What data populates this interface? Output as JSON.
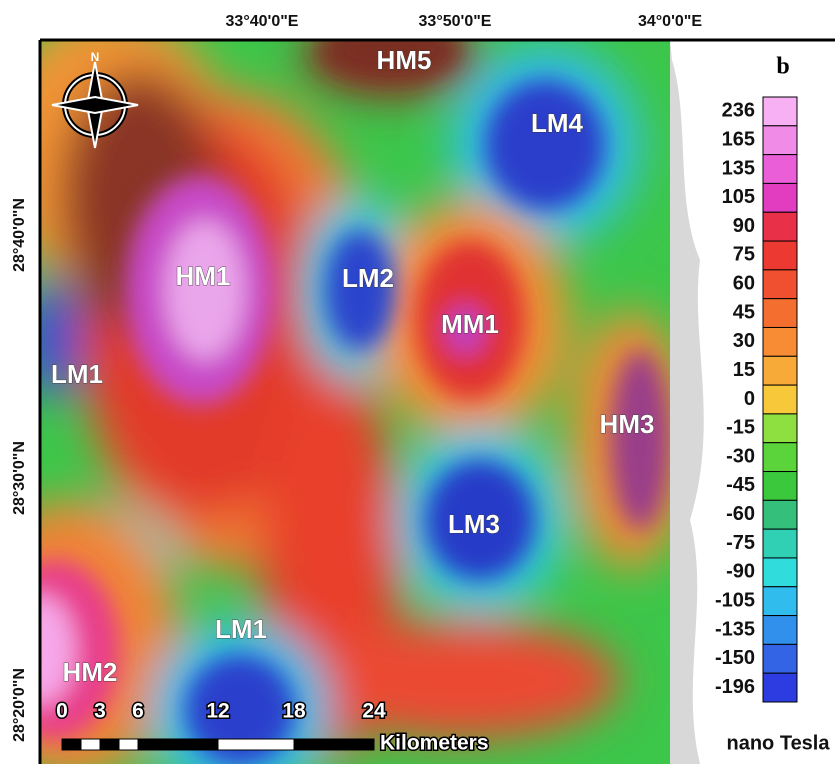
{
  "panel_label": "b",
  "x_axis_labels": [
    "33°40'0\"E",
    "33°50'0\"E",
    "34°0'0\"E"
  ],
  "y_axis_labels": [
    "28°40'0\"N",
    "28°30'0\"N",
    "28°20'0\"N"
  ],
  "anomaly_labels": [
    "HM5",
    "LM4",
    "HM1",
    "LM2",
    "MM1",
    "LM1",
    "HM3",
    "LM3",
    "LM1",
    "HM2"
  ],
  "compass": "N",
  "legend": {
    "values": [
      236,
      165,
      135,
      105,
      90,
      75,
      60,
      45,
      30,
      15,
      0,
      -15,
      -30,
      -45,
      -60,
      -75,
      -90,
      -105,
      -135,
      -150,
      -196
    ],
    "colors": [
      "#f8b0f4",
      "#f08ce8",
      "#ea5ed8",
      "#e23cc0",
      "#e83048",
      "#ec3a32",
      "#f05030",
      "#f46e30",
      "#f78c34",
      "#f8aa38",
      "#f6c83a",
      "#8ee040",
      "#5ad43a",
      "#3cc83c",
      "#34c07a",
      "#30d0b4",
      "#30dcdc",
      "#30bcec",
      "#3090ec",
      "#3464e6",
      "#2c3ce0"
    ],
    "unit": "nano Tesla"
  },
  "scale_bar": {
    "ticks": [
      0,
      3,
      6,
      12,
      18,
      24
    ],
    "unit": "Kilometers"
  }
}
